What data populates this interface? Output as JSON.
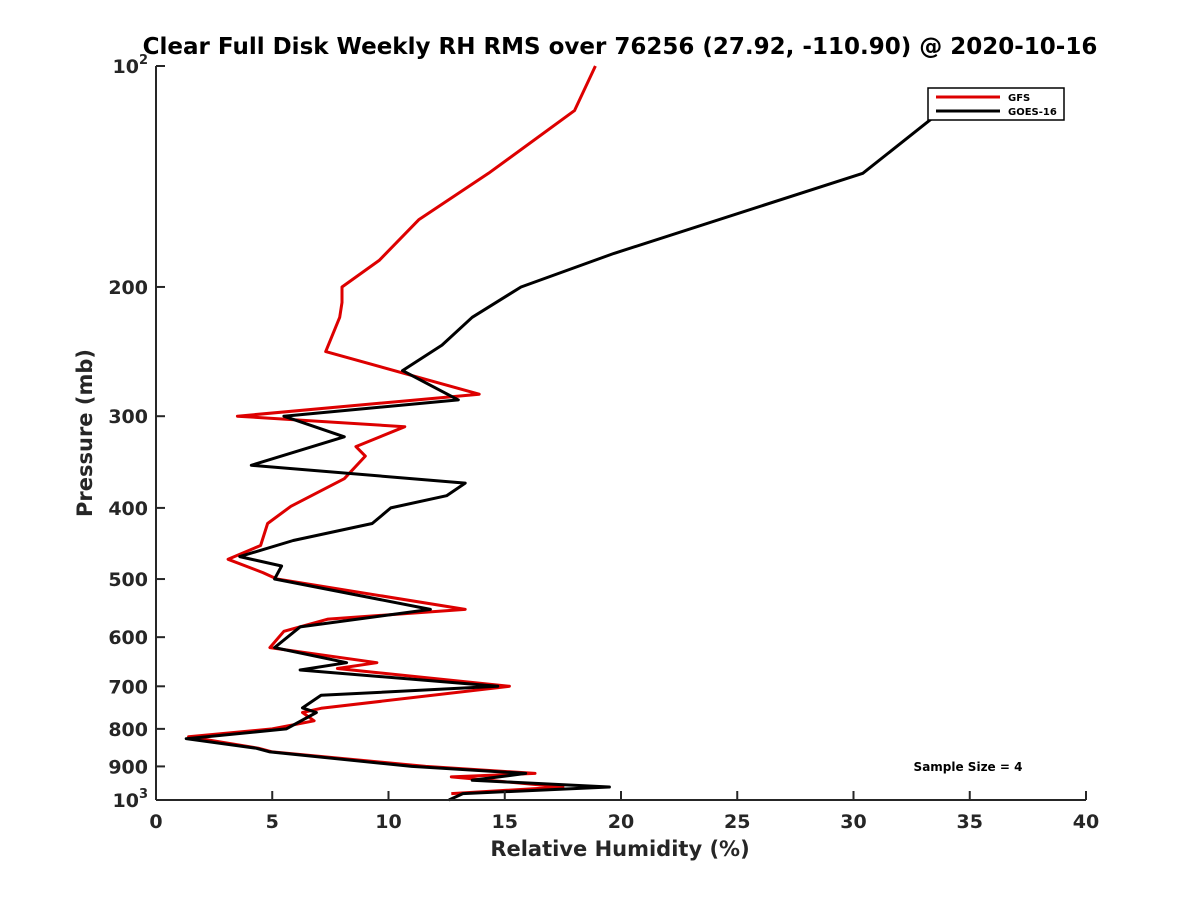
{
  "chart_data": {
    "type": "line",
    "title": "Clear Full Disk Weekly RH RMS over 76256 (27.92, -110.90) @ 2020-10-16",
    "xlabel": "Relative Humidity (%)",
    "ylabel": "Pressure (mb)",
    "xlim": [
      0,
      40
    ],
    "ylim": [
      100,
      1000
    ],
    "yscale": "log",
    "y_reversed": true,
    "xticks": [
      0,
      5,
      10,
      15,
      20,
      25,
      30,
      35,
      40
    ],
    "xtick_labels": [
      "0",
      "5",
      "10",
      "15",
      "20",
      "25",
      "30",
      "35",
      "40"
    ],
    "yticks": [
      100,
      200,
      300,
      400,
      500,
      600,
      700,
      800,
      900,
      1000
    ],
    "ytick_labels": [
      {
        "base": "10",
        "exp": "2"
      },
      {
        "base": "200",
        "exp": ""
      },
      {
        "base": "300",
        "exp": ""
      },
      {
        "base": "400",
        "exp": ""
      },
      {
        "base": "500",
        "exp": ""
      },
      {
        "base": "600",
        "exp": ""
      },
      {
        "base": "700",
        "exp": ""
      },
      {
        "base": "800",
        "exp": ""
      },
      {
        "base": "900",
        "exp": ""
      },
      {
        "base": "10",
        "exp": "3"
      }
    ],
    "legend_position": "top-right",
    "annotation": "Sample Size = 4",
    "series": [
      {
        "name": "GFS",
        "color": "#dd0000",
        "x": [
          18.9,
          18.0,
          14.3,
          11.3,
          9.6,
          8.0,
          8.0,
          7.9,
          7.3,
          13.9,
          3.5,
          10.7,
          8.6,
          9.0,
          8.1,
          5.8,
          4.8,
          4.5,
          3.1,
          4.6,
          5.2,
          13.3,
          7.4,
          5.5,
          4.9,
          9.5,
          7.8,
          15.2,
          7.1,
          6.3,
          6.8,
          5.0,
          1.4,
          4.4,
          5.0,
          11.6,
          16.3,
          12.7,
          17.5,
          12.7
        ],
        "y": [
          100,
          115,
          140,
          162,
          184,
          200,
          210,
          220,
          245,
          280,
          300,
          310,
          330,
          340,
          365,
          398,
          420,
          450,
          470,
          490,
          500,
          550,
          567,
          589,
          620,
          650,
          662,
          700,
          750,
          760,
          780,
          800,
          820,
          850,
          860,
          900,
          920,
          930,
          960,
          980
        ]
      },
      {
        "name": "GOES-16",
        "color": "#000000",
        "x": [
          33.8,
          30.4,
          19.7,
          15.7,
          13.6,
          12.3,
          10.6,
          13.0,
          5.5,
          8.1,
          4.1,
          13.3,
          12.5,
          10.1,
          9.3,
          5.9,
          3.6,
          5.4,
          5.1,
          11.8,
          6.2,
          5.1,
          8.2,
          6.2,
          14.7,
          7.1,
          6.3,
          6.9,
          5.6,
          1.3,
          4.3,
          4.9,
          11.0,
          15.9,
          13.6,
          19.5,
          13.2,
          12.6
        ],
        "y": [
          115,
          140,
          180,
          200,
          220,
          240,
          260,
          285,
          300,
          320,
          350,
          370,
          385,
          400,
          420,
          443,
          466,
          480,
          500,
          550,
          581,
          620,
          650,
          665,
          700,
          720,
          749,
          760,
          800,
          825,
          850,
          860,
          900,
          920,
          940,
          960,
          980,
          1000
        ]
      }
    ]
  }
}
